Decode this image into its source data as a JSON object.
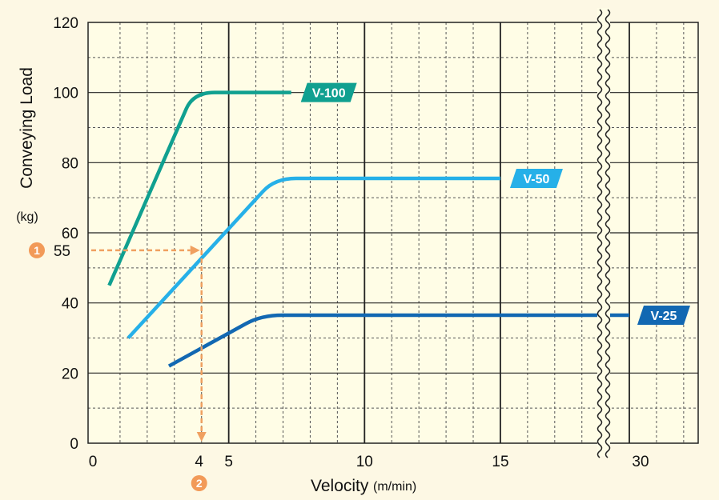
{
  "chart_data": {
    "type": "line",
    "xlabel": "Velocity",
    "xunit": "(m/min)",
    "ylabel": "Conveying Load",
    "yunit": "(kg)",
    "ylim": [
      0,
      120
    ],
    "y_ticks": [
      0,
      20,
      40,
      60,
      80,
      100,
      120
    ],
    "x_ticks": [
      0,
      5,
      10,
      15,
      30
    ],
    "axis_break": "between 15 and 30",
    "grid": "major solid at every 5 m/min and 20 kg, dashed minor at every 1 m/min and 10 kg",
    "series": [
      {
        "name": "V-100",
        "color": "#10a090",
        "points": [
          [
            0.6,
            45
          ],
          [
            3.7,
            100
          ],
          [
            7.3,
            100
          ]
        ]
      },
      {
        "name": "V-50",
        "color": "#26b0e8",
        "points": [
          [
            1.3,
            30
          ],
          [
            6.7,
            75.5
          ],
          [
            15,
            75.5
          ]
        ]
      },
      {
        "name": "V-25",
        "color": "#1268b2",
        "points": [
          [
            2.8,
            22
          ],
          [
            6.2,
            36.5
          ],
          [
            30,
            36.5
          ]
        ]
      }
    ],
    "annotation": {
      "y_value": 55,
      "y_label": "55",
      "y_badge": "1",
      "x_value": 4,
      "x_label": "4",
      "x_badge": "2",
      "color": "#f0a060"
    }
  }
}
